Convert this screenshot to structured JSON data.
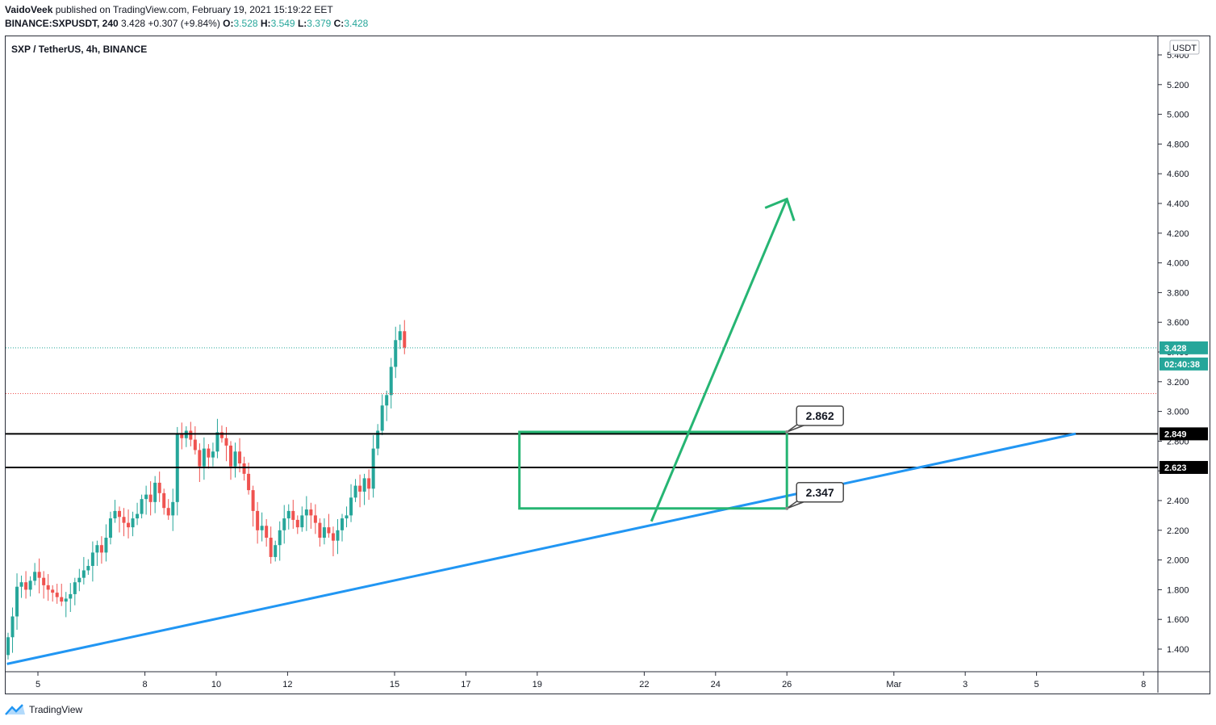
{
  "header": {
    "author": "VaidoVeek",
    "published": "published on TradingView.com, February 19, 2021 15:19:22 EET",
    "symbol": "BINANCE:SXPUSDT, 240",
    "last": "3.428",
    "change": "+0.307 (+9.84%)",
    "o_label": "O:",
    "o": "3.528",
    "h_label": "H:",
    "h": "3.549",
    "l_label": "L:",
    "l": "3.379",
    "c_label": "C:",
    "c": "3.428"
  },
  "legend_title": "SXP / TetherUS, 4h, BINANCE",
  "currency": "USDT",
  "footer": {
    "brand": "TradingView"
  },
  "colors": {
    "up": "#26a69a",
    "down": "#ef5350",
    "trend": "#2196f3",
    "zone": "#26b573",
    "level": "#000000"
  },
  "chart_data": {
    "type": "candlestick",
    "y_ticks": [
      "5.400",
      "5.200",
      "5.000",
      "4.800",
      "4.600",
      "4.400",
      "4.200",
      "4.000",
      "3.800",
      "3.600",
      "3.400",
      "3.200",
      "3.000",
      "2.800",
      "2.600",
      "2.400",
      "2.200",
      "2.000",
      "1.800",
      "1.600",
      "1.400"
    ],
    "x_ticks": [
      "5",
      "8",
      "10",
      "12",
      "15",
      "17",
      "19",
      "22",
      "24",
      "26",
      "Mar",
      "3",
      "5",
      "8"
    ],
    "price_labels": {
      "last": "3.428",
      "countdown": "02:40:38",
      "level_high": "2.849",
      "level_low": "2.623"
    },
    "callouts": {
      "upper": "2.862",
      "lower": "2.347"
    },
    "levels": [
      2.849,
      2.623
    ],
    "zone": {
      "top": 2.862,
      "bottom": 2.347,
      "from": "Feb 18",
      "to": "Feb 26"
    },
    "trendline": {
      "from": [
        "Feb 4",
        1.3
      ],
      "to": [
        "Mar 6",
        2.85
      ]
    },
    "projection_arrow": {
      "from": [
        "Feb 22",
        2.26
      ],
      "to": [
        "Feb 26",
        4.43
      ]
    },
    "closes": [
      1.48,
      1.62,
      1.82,
      1.85,
      1.8,
      1.86,
      1.92,
      1.88,
      1.83,
      1.8,
      1.78,
      1.75,
      1.72,
      1.74,
      1.77,
      1.85,
      1.88,
      1.93,
      1.96,
      2.05,
      2.1,
      2.05,
      2.15,
      2.28,
      2.33,
      2.29,
      2.25,
      2.22,
      2.28,
      2.31,
      2.41,
      2.44,
      2.39,
      2.52,
      2.45,
      2.35,
      2.3,
      2.39,
      2.85,
      2.82,
      2.87,
      2.81,
      2.74,
      2.63,
      2.75,
      2.69,
      2.73,
      2.86,
      2.82,
      2.77,
      2.63,
      2.73,
      2.65,
      2.58,
      2.47,
      2.33,
      2.2,
      2.23,
      2.15,
      2.02,
      2.1,
      2.2,
      2.28,
      2.33,
      2.27,
      2.22,
      2.3,
      2.34,
      2.3,
      2.25,
      2.15,
      2.22,
      2.18,
      2.13,
      2.2,
      2.28,
      2.3,
      2.42,
      2.5,
      2.46,
      2.55,
      2.48,
      2.75,
      2.87,
      3.04,
      3.11,
      3.3,
      3.48,
      3.54,
      3.43
    ]
  }
}
